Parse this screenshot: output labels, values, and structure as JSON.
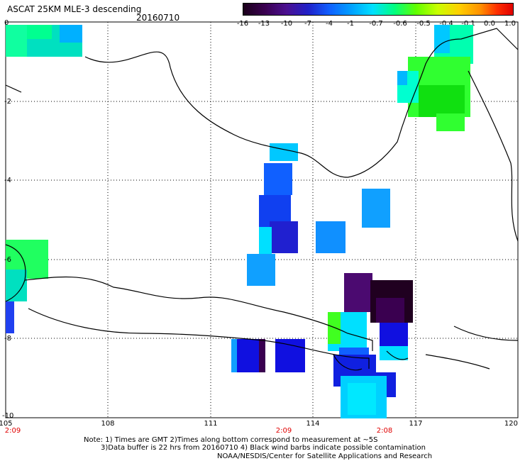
{
  "header": {
    "title": "ASCAT 25KM MLE-3 descending",
    "date": "20160710"
  },
  "colorbar": {
    "labels": [
      "-16",
      "-13",
      "-10",
      "-7",
      "-4",
      "-1",
      "-0.7",
      "-0.6",
      "-0.5",
      "-0.4",
      "-0.1",
      "0.0",
      "1.0"
    ]
  },
  "map": {
    "lon_labels": [
      "105",
      "108",
      "111",
      "114",
      "117",
      "120"
    ],
    "lat_labels": [
      "0",
      "-2",
      "-4",
      "-6",
      "-8",
      "-10"
    ],
    "time_labels": [
      "2:09",
      "2:09",
      "2:08"
    ]
  },
  "notes": {
    "line1": "Note: 1) Times are GMT 2)Times along bottom correspond to measurement at ~5S",
    "line2": "3)Data buffer is 22 hrs from 20160710 4) Black wind barbs indicate possible contamination",
    "credit": "NOAA/NESDIS/Center for Satellite Applications and Research"
  }
}
